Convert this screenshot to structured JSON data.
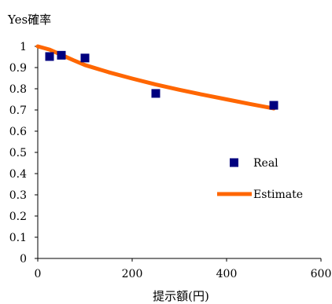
{
  "chart_data": {
    "type": "scatter",
    "ylabel": "Yes確率",
    "xlabel": "提示額(円)",
    "xlim": [
      0,
      600
    ],
    "ylim": [
      0,
      1
    ],
    "x_ticks": [
      "0",
      "200",
      "400",
      "600"
    ],
    "y_ticks": [
      "0",
      "0.1",
      "0.2",
      "0.3",
      "0.4",
      "0.5",
      "0.6",
      "0.7",
      "0.8",
      "0.9",
      "1"
    ],
    "grid": false,
    "legend_position": "right",
    "series": [
      {
        "name": "Real",
        "kind": "markers",
        "color": "#00007f",
        "points": [
          [
            25,
            0.952
          ],
          [
            50,
            0.958
          ],
          [
            100,
            0.945
          ],
          [
            250,
            0.778
          ],
          [
            500,
            0.722
          ]
        ]
      },
      {
        "name": "Estimate",
        "kind": "line",
        "color": "#ff6600",
        "points": [
          [
            0,
            1.0
          ],
          [
            25,
            0.985
          ],
          [
            50,
            0.96
          ],
          [
            75,
            0.935
          ],
          [
            100,
            0.912
          ],
          [
            150,
            0.878
          ],
          [
            200,
            0.848
          ],
          [
            250,
            0.82
          ],
          [
            300,
            0.795
          ],
          [
            350,
            0.772
          ],
          [
            400,
            0.75
          ],
          [
            450,
            0.728
          ],
          [
            500,
            0.707
          ]
        ]
      }
    ]
  }
}
